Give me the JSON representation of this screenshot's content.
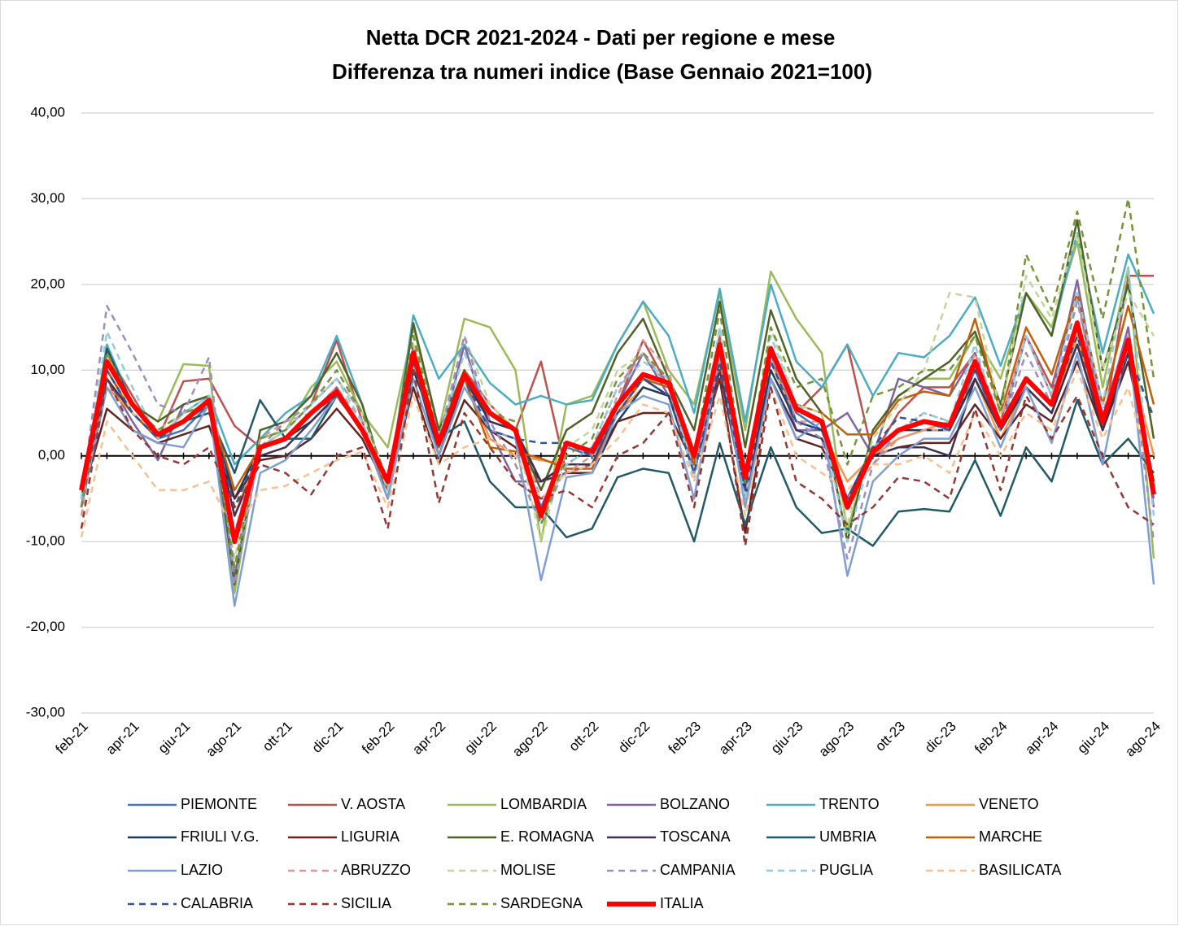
{
  "chart_data": {
    "type": "line",
    "title": "Netta DCR 2021-2024 - Dati per regione e mese",
    "subtitle": "Differenza tra numeri indice (Base Gennaio 2021=100)",
    "categories": [
      "feb-21",
      null,
      "apr-21",
      null,
      "giu-21",
      null,
      "ago-21",
      null,
      "ott-21",
      null,
      "dic-21",
      null,
      "feb-22",
      null,
      "apr-22",
      null,
      "giu-22",
      null,
      "ago-22",
      null,
      "ott-22",
      null,
      "dic-22",
      null,
      "feb-23",
      null,
      "apr-23",
      null,
      "giu-23",
      null,
      "ago-23",
      null,
      "ott-23",
      null,
      "dic-23",
      null,
      "feb-24",
      null,
      "apr-24",
      null,
      "giu-24",
      null,
      "ago-24"
    ],
    "ylim": [
      -30,
      40
    ],
    "yticks": [
      {
        "value": -30,
        "label": "-30,00"
      },
      {
        "value": -20,
        "label": "-20,00"
      },
      {
        "value": -10,
        "label": "-10,00"
      },
      {
        "value": 0,
        "label": "0,00"
      },
      {
        "value": 10,
        "label": "10,00"
      },
      {
        "value": 20,
        "label": "20,00"
      },
      {
        "value": 30,
        "label": "30,00"
      },
      {
        "value": 40,
        "label": "40,00"
      }
    ],
    "grid": true,
    "series": [
      {
        "name": "PIEMONTE",
        "color": "#4472c4",
        "dashed": false,
        "line_width": 2.5,
        "values": [
          -5,
          10,
          5,
          2,
          3,
          6,
          -9,
          1,
          2,
          4,
          7,
          3,
          -3,
          11,
          1,
          9,
          4,
          3,
          -6,
          1,
          0,
          5,
          9,
          8,
          -1,
          12,
          -3,
          11,
          5,
          3,
          -6,
          0,
          3,
          4,
          3,
          10,
          3,
          8,
          5,
          14,
          4,
          13,
          -5
        ]
      },
      {
        "name": "V. AOSTA",
        "color": "#c0504d",
        "dashed": false,
        "line_width": 2.5,
        "values": [
          -6,
          12,
          7,
          2,
          8.7,
          9,
          3.5,
          1,
          3,
          6,
          13.5,
          4,
          -4,
          13,
          1,
          10,
          6,
          3,
          11,
          -2,
          -1,
          6,
          13.5,
          8,
          -1,
          14,
          -4,
          12,
          5,
          8,
          13,
          0,
          5,
          8,
          8,
          12,
          4,
          14,
          8,
          19,
          3,
          21,
          21
        ]
      },
      {
        "name": "LOMBARDIA",
        "color": "#9bbb59",
        "dashed": false,
        "line_width": 2.5,
        "values": [
          -5,
          12,
          6,
          4,
          10.7,
          10.5,
          -16,
          2,
          3,
          8,
          11,
          5,
          1,
          15,
          3,
          16,
          15,
          10,
          -10,
          6,
          7,
          13,
          18,
          10,
          6,
          19,
          3,
          21.5,
          16,
          12,
          -9,
          3,
          7,
          9,
          9,
          14,
          9,
          19,
          15,
          25,
          8,
          22,
          -12
        ]
      },
      {
        "name": "BOLZANO",
        "color": "#8064a2",
        "dashed": false,
        "line_width": 2.5,
        "values": [
          -6,
          9,
          4,
          -0.5,
          6,
          7,
          -14,
          1,
          2,
          5,
          8,
          3,
          -4,
          12,
          1,
          13,
          3,
          -3,
          -3,
          -1,
          -1,
          6,
          12,
          7,
          -2,
          11,
          -5,
          12,
          3,
          3,
          5,
          0,
          9,
          8,
          7,
          12,
          3,
          14,
          7,
          20.5,
          4,
          15,
          -6
        ]
      },
      {
        "name": "TRENTO",
        "color": "#4bacc6",
        "dashed": false,
        "line_width": 2.5,
        "values": [
          -5,
          13,
          6,
          2,
          5,
          7,
          -1,
          2,
          5,
          7,
          14,
          6,
          -4,
          16.4,
          9,
          13,
          8.5,
          6,
          7,
          6,
          6.5,
          13,
          18,
          14,
          5,
          19.5,
          4,
          20,
          11,
          8,
          13,
          7,
          12,
          11.5,
          14,
          18.5,
          10.5,
          19,
          14,
          26,
          12,
          23.5,
          16.6
        ]
      },
      {
        "name": "VENETO",
        "color": "#f79646",
        "dashed": false,
        "line_width": 2.5,
        "values": [
          -6,
          8,
          5,
          2,
          4,
          6,
          -7,
          1,
          2,
          5,
          7,
          3,
          -4,
          11,
          1,
          9,
          2,
          0,
          -0.5,
          -1,
          -1,
          5,
          8,
          7,
          -2,
          11,
          -5,
          11,
          4,
          3,
          -3,
          0,
          2,
          3,
          4,
          9,
          2,
          8,
          5,
          14,
          3,
          12,
          0
        ]
      },
      {
        "name": "FRIULI V.G.",
        "color": "#1f3b5c",
        "dashed": false,
        "line_width": 2.5,
        "values": [
          -6,
          10,
          5,
          2,
          4,
          6,
          -5,
          1,
          2,
          4,
          7,
          3,
          -3,
          10,
          2,
          9,
          4,
          3,
          -3,
          -1,
          -1,
          4,
          8,
          7,
          -1,
          10,
          -4,
          10,
          4,
          3,
          -5,
          1,
          3,
          3,
          3,
          9,
          3,
          8,
          5,
          13,
          3,
          12,
          -4
        ]
      },
      {
        "name": "LIGURIA",
        "color": "#632523",
        "dashed": false,
        "line_width": 2.5,
        "values": [
          -5,
          5.5,
          3,
          1.5,
          2.5,
          3.5,
          -5,
          -0.5,
          0,
          2,
          5.5,
          2,
          -4,
          8,
          -1,
          6.5,
          3,
          1,
          -3,
          -2,
          -2,
          4,
          5,
          5,
          -1,
          9,
          -9,
          9,
          2,
          1,
          -5,
          0,
          1,
          1.5,
          1.5,
          6,
          2,
          6,
          4,
          11,
          3,
          11,
          -3
        ]
      },
      {
        "name": "E. ROMAGNA",
        "color": "#4f6228",
        "dashed": false,
        "line_width": 2.5,
        "values": [
          -5,
          12.5,
          6,
          4,
          6,
          7,
          -15,
          3,
          4,
          7,
          12,
          6,
          -4,
          15.5,
          3,
          10,
          4,
          3,
          -4,
          3,
          5,
          12,
          16,
          9,
          3,
          18,
          1,
          17,
          9,
          5,
          -10,
          3,
          7,
          9,
          11,
          14.5,
          6,
          19,
          14,
          27.5,
          10,
          20,
          2
        ]
      },
      {
        "name": "TOSCANA",
        "color": "#403152",
        "dashed": false,
        "line_width": 2.5,
        "values": [
          -5,
          9,
          5,
          2,
          4,
          6,
          -7,
          0,
          1,
          4,
          7,
          3,
          -4,
          11,
          0,
          9,
          4,
          3,
          -3,
          -1,
          -1,
          5,
          9,
          7,
          -2,
          10,
          -5,
          9,
          3,
          2,
          -5,
          0,
          1,
          1,
          0,
          9,
          3,
          8,
          5,
          13,
          3,
          12,
          -4
        ]
      },
      {
        "name": "UMBRIA",
        "color": "#215968",
        "dashed": false,
        "line_width": 2.5,
        "values": [
          -6,
          12.5,
          6,
          2,
          4,
          5,
          -2,
          6.5,
          2,
          2,
          7,
          3,
          -5,
          12,
          2,
          4,
          -3,
          -6,
          -6,
          -9.5,
          -8.5,
          -2.5,
          -1.5,
          -2,
          -10,
          1.5,
          -8,
          1,
          -6,
          -9,
          -8.5,
          -10.5,
          -6.5,
          -6.2,
          -6.5,
          -0.5,
          -7,
          1,
          -3,
          6.5,
          -1,
          2,
          -2
        ]
      },
      {
        "name": "MARCHE",
        "color": "#c0600a",
        "dashed": false,
        "line_width": 2.5,
        "values": [
          -6,
          10,
          5,
          2,
          4,
          6,
          -4,
          1,
          2,
          5,
          7,
          3,
          -4,
          11,
          1,
          9,
          1,
          0.5,
          -0.3,
          -1.5,
          -1.5,
          5,
          9,
          8,
          -1,
          12,
          -3,
          12,
          6,
          5,
          2.5,
          2.5,
          6.5,
          7.5,
          7,
          16,
          5,
          15,
          9.5,
          19,
          6,
          17.5,
          6
        ]
      },
      {
        "name": "LAZIO",
        "color": "#7f9fd3",
        "dashed": false,
        "line_width": 2.5,
        "values": [
          -6,
          8,
          3,
          1.5,
          1,
          6,
          -17.5,
          -2,
          -0.5,
          3,
          7,
          3,
          -5,
          9,
          0,
          8,
          3,
          2,
          -14.5,
          -2.5,
          -2,
          5,
          7,
          6,
          -5,
          12,
          -6,
          9,
          2,
          4,
          -14,
          -3,
          0,
          2,
          2,
          8,
          1,
          8,
          1.5,
          12,
          -1,
          14,
          -15
        ]
      },
      {
        "name": "ABRUZZO",
        "color": "#d99694",
        "dashed": true,
        "line_width": 2.5,
        "values": [
          -7,
          11,
          6,
          2,
          5,
          6,
          -9,
          2,
          4,
          5,
          8,
          4,
          -4,
          11,
          2,
          9,
          6,
          3,
          -5,
          -2,
          0,
          7,
          13.5,
          10,
          -2,
          11,
          -3,
          12,
          4,
          4,
          -5,
          -1,
          2,
          3,
          3,
          12,
          4,
          14,
          7,
          16,
          5,
          14,
          -5
        ]
      },
      {
        "name": "MOLISE",
        "color": "#c3d69b",
        "dashed": true,
        "line_width": 2.5,
        "values": [
          -6,
          11,
          5,
          3,
          5,
          6,
          -12,
          1,
          3,
          6,
          9,
          5,
          -3,
          13,
          2,
          14,
          6,
          3,
          -10,
          1,
          3,
          10,
          12,
          8,
          -2,
          15,
          -3,
          15,
          6,
          5,
          -8,
          2,
          6,
          10,
          19,
          18.5,
          5,
          21,
          16,
          26,
          10,
          19,
          14
        ]
      },
      {
        "name": "CAMPANIA",
        "color": "#9f8dbf",
        "dashed": true,
        "line_width": 2.5,
        "values": [
          -5,
          17.5,
          12,
          6,
          5,
          11.5,
          -15,
          1,
          4,
          6,
          9,
          5,
          -3,
          12,
          2,
          14,
          4,
          -1,
          -8,
          -1,
          1,
          8,
          12,
          8,
          -2,
          12,
          -5,
          13,
          4,
          2,
          -12,
          -1,
          3,
          5,
          4,
          11,
          3,
          12,
          6,
          18,
          5,
          14,
          -10
        ]
      },
      {
        "name": "PUGLIA",
        "color": "#93cddd",
        "dashed": true,
        "line_width": 2.5,
        "values": [
          -5,
          14.5,
          8,
          2,
          5,
          7,
          -13,
          1,
          3,
          6,
          9,
          4,
          -4,
          12,
          2,
          12,
          5,
          3,
          -7,
          -1,
          1,
          8,
          11,
          9,
          -3,
          15,
          -5,
          14,
          6,
          4,
          -10,
          1,
          3,
          5,
          4,
          13,
          3,
          14,
          7,
          19,
          6,
          22,
          -7
        ]
      },
      {
        "name": "BASILICATA",
        "color": "#fac090",
        "dashed": true,
        "line_width": 2.5,
        "values": [
          -9.5,
          4,
          0,
          -4,
          -4,
          -3,
          -9,
          -4,
          -3.5,
          -2,
          -0.5,
          0.5,
          -6,
          7,
          -1,
          1,
          2,
          0,
          -5,
          -2,
          -1,
          2,
          6,
          5,
          -3,
          7,
          -7,
          8,
          0,
          -2,
          -4,
          -1,
          -1,
          0,
          -2,
          5,
          0,
          5,
          3,
          10,
          2,
          8,
          -4
        ]
      },
      {
        "name": "CALABRIA",
        "color": "#2e5597",
        "dashed": true,
        "line_width": 2.5,
        "values": [
          -6,
          10,
          5,
          2,
          4,
          6,
          -6,
          1,
          2,
          5,
          7,
          3,
          -3,
          11,
          1,
          9,
          3,
          2,
          1.5,
          1.5,
          0,
          5,
          9,
          7,
          -2,
          11,
          -4,
          11,
          4,
          3,
          -5,
          1,
          4.5,
          4,
          3,
          10,
          3,
          9,
          6,
          14,
          4,
          12,
          4.5
        ]
      },
      {
        "name": "SICILIA",
        "color": "#953735",
        "dashed": true,
        "line_width": 2.5,
        "values": [
          -8.5,
          9,
          3,
          0,
          -1,
          1,
          -6,
          -1,
          -2,
          -4.5,
          0,
          1,
          -8.5,
          10,
          -5.5,
          5,
          1,
          -3,
          -5,
          -4,
          -6,
          0,
          1.5,
          5,
          -6,
          10,
          -10.5,
          8,
          -3,
          -5,
          -8,
          -6,
          -2.5,
          -3,
          -5,
          5.5,
          -4,
          7,
          2,
          7,
          0,
          -6,
          -8
        ]
      },
      {
        "name": "SARDEGNA",
        "color": "#77933c",
        "dashed": true,
        "line_width": 2.5,
        "values": [
          -6,
          12,
          6,
          3,
          5,
          6,
          -13,
          2,
          3,
          6,
          10,
          5,
          -3,
          14,
          2,
          10,
          5,
          4,
          -8,
          0,
          2,
          9,
          12,
          9,
          0,
          17,
          -3,
          15,
          8,
          9,
          -1,
          7,
          8,
          10,
          10,
          14,
          5,
          23.5,
          17,
          28.5,
          16,
          30,
          9
        ]
      },
      {
        "name": "ITALIA",
        "color": "#ff0000",
        "dashed": false,
        "line_width": 6,
        "values": [
          -4,
          11,
          6,
          2.5,
          4,
          6.5,
          -10,
          1,
          2,
          5,
          7.5,
          3,
          -3,
          12,
          1.5,
          9.5,
          5,
          3,
          -7,
          1.5,
          0.5,
          6,
          9.5,
          8.5,
          0,
          13,
          -2.5,
          12.5,
          5.5,
          4,
          -6,
          0.5,
          3,
          4,
          3.5,
          11,
          3.5,
          9,
          6,
          15.5,
          4,
          13.5,
          -4.5
        ]
      }
    ]
  }
}
